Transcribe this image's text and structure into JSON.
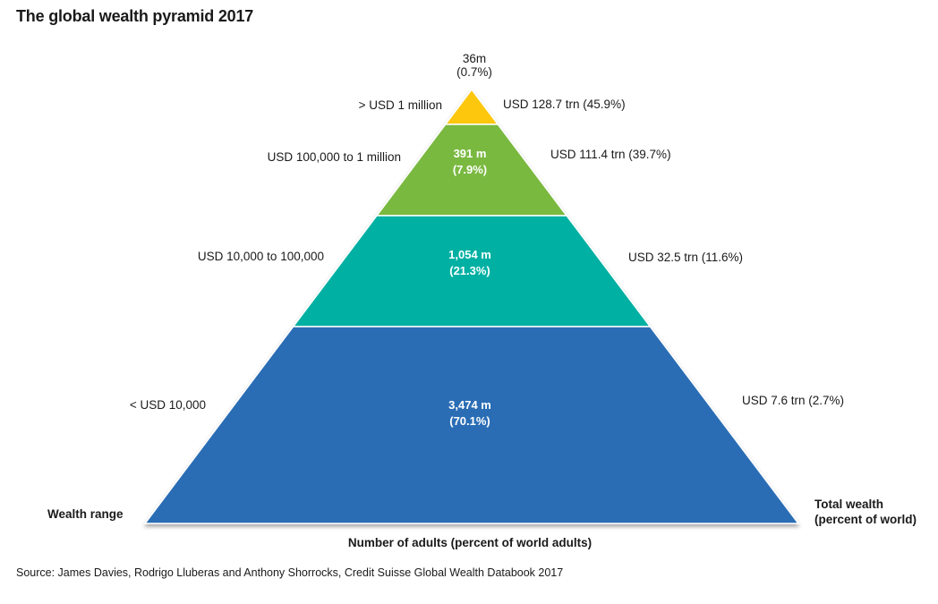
{
  "chart_data": {
    "type": "pyramid",
    "title": "The global wealth pyramid 2017",
    "left_axis_label": "Wealth range",
    "right_axis_label_line1": "Total wealth",
    "right_axis_label_line2": "(percent of world)",
    "bottom_axis_label": "Number of adults (percent of world adults)",
    "source": "Source: James Davies, Rodrigo Lluberas and Anthony Shorrocks, Credit Suisse Global Wealth Databook 2017",
    "tiers": [
      {
        "wealth_range": "> USD 1 million",
        "adults": "36m",
        "adults_pct": "(0.7%)",
        "total_wealth": "USD 128.7 trn (45.9%)",
        "color": "#fdc70c"
      },
      {
        "wealth_range": "USD 100,000  to 1 million",
        "adults": "391 m",
        "adults_pct": "(7.9%)",
        "total_wealth": "USD 111.4 trn (39.7%)",
        "color": "#7ab941"
      },
      {
        "wealth_range": "USD 10,000  to 100,000",
        "adults": "1,054 m",
        "adults_pct": "(21.3%)",
        "total_wealth": "USD 32.5 trn (11.6%)",
        "color": "#00b0a3"
      },
      {
        "wealth_range": "< USD 10,000",
        "adults": "3,474 m",
        "adults_pct": "(70.1%)",
        "total_wealth": "USD 7.6 trn (2.7%)",
        "color": "#2b6db5"
      }
    ]
  }
}
